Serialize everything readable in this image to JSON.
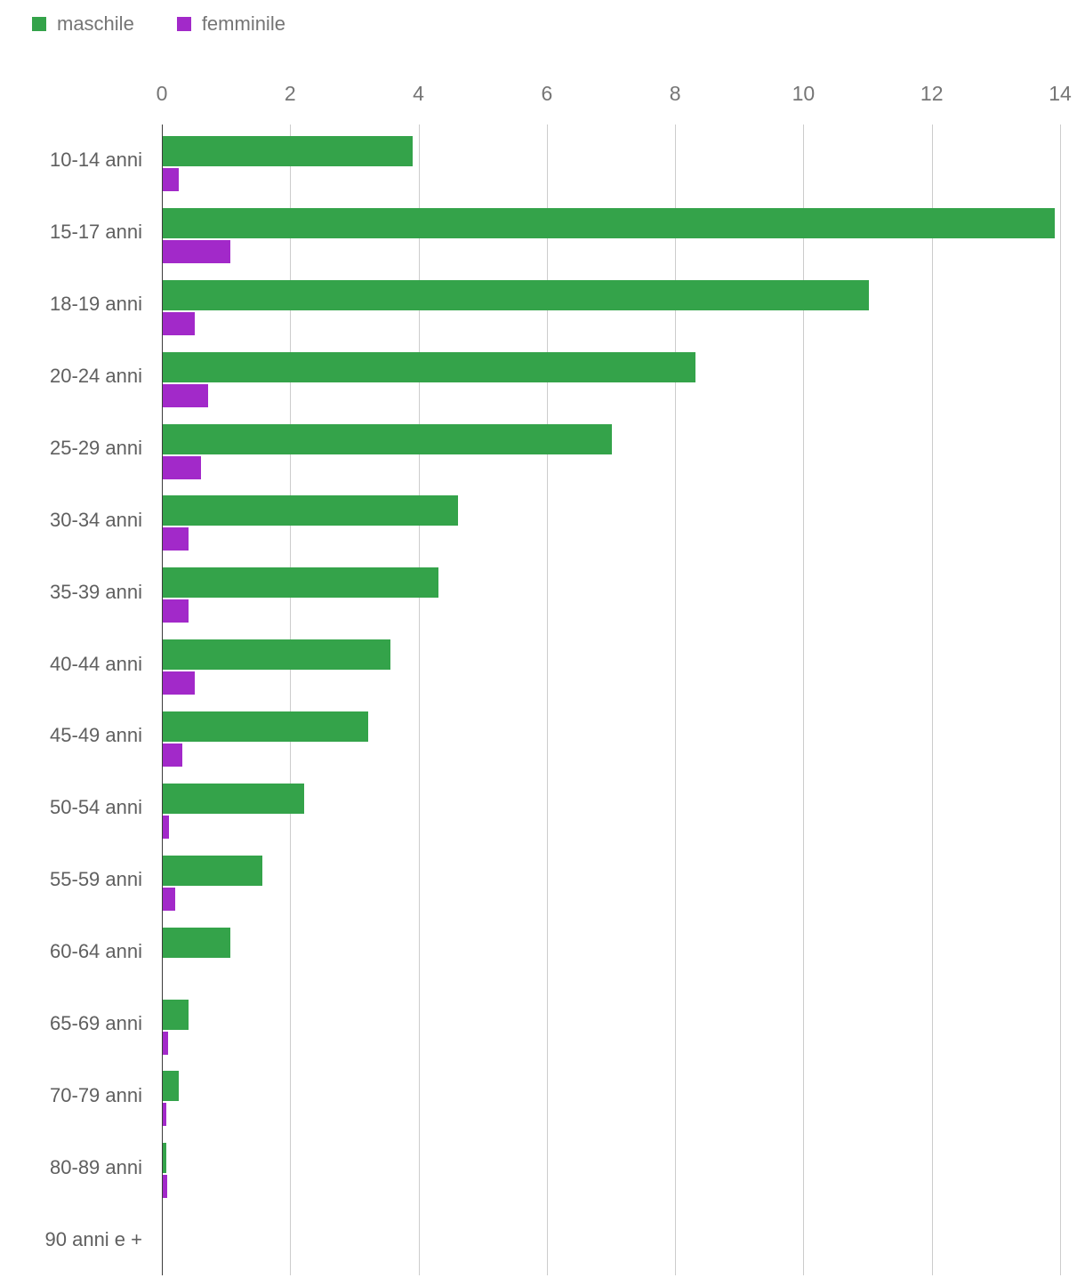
{
  "legend": {
    "items": [
      {
        "label": "maschile",
        "color": "#34a34a"
      },
      {
        "label": "femminile",
        "color": "#a229c9"
      }
    ]
  },
  "chart_data": {
    "type": "bar",
    "orientation": "horizontal",
    "title": "",
    "xlabel": "",
    "ylabel": "",
    "grid": true,
    "legend_position": "top-left",
    "xlim": [
      0,
      14
    ],
    "xticks": [
      0,
      2,
      4,
      6,
      8,
      10,
      12,
      14
    ],
    "categories": [
      "10-14 anni",
      "15-17 anni",
      "18-19 anni",
      "20-24 anni",
      "25-29 anni",
      "30-34 anni",
      "35-39 anni",
      "40-44 anni",
      "45-49 anni",
      "50-54 anni",
      "55-59 anni",
      "60-64 anni",
      "65-69 anni",
      "70-79 anni",
      "80-89 anni",
      "90 anni e +"
    ],
    "series": [
      {
        "name": "maschile",
        "color": "#34a34a",
        "values": [
          3.9,
          13.9,
          11.0,
          8.3,
          7.0,
          4.6,
          4.3,
          3.55,
          3.2,
          2.2,
          1.55,
          1.05,
          0.4,
          0.25,
          0.05,
          0
        ]
      },
      {
        "name": "femminile",
        "color": "#a229c9",
        "values": [
          0.25,
          1.05,
          0.5,
          0.7,
          0.6,
          0.4,
          0.4,
          0.5,
          0.3,
          0.1,
          0.2,
          0,
          0.08,
          0.05,
          0.07,
          0
        ]
      }
    ]
  }
}
